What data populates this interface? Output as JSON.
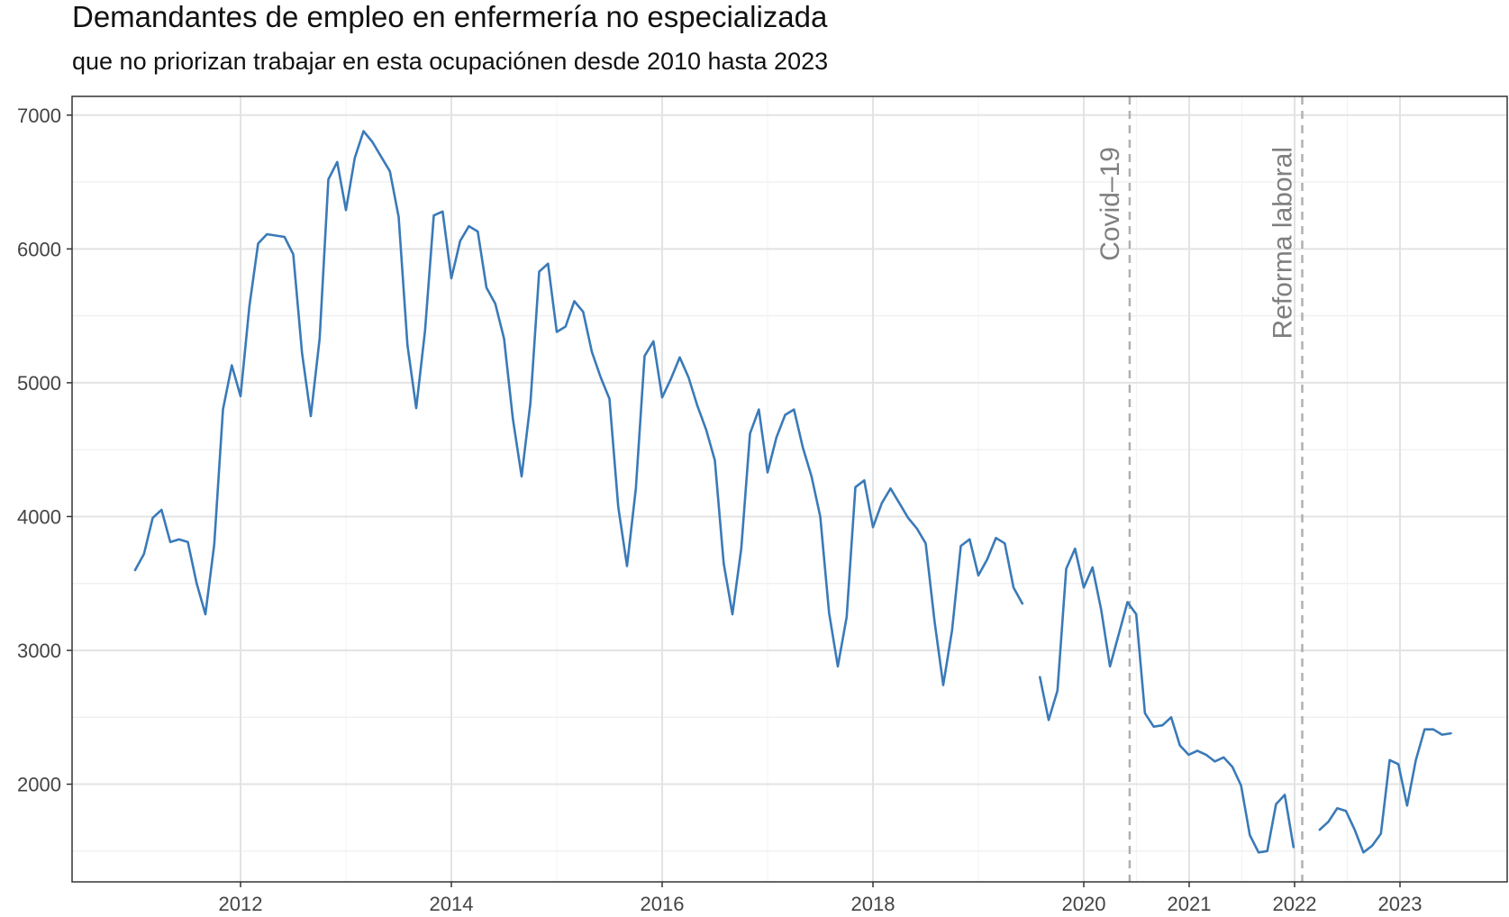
{
  "chart_data": {
    "type": "line",
    "title": "Demandantes de empleo en enfermería no especializada",
    "subtitle": "que no priorizan trabajar en esta ocupaciónen desde 2010 hasta 2023",
    "xlabel": "",
    "ylabel": "",
    "x_ticks": [
      "2012",
      "2014",
      "2016",
      "2018",
      "2020",
      "2021",
      "2022",
      "2023"
    ],
    "y_ticks": [
      2000,
      3000,
      4000,
      5000,
      6000,
      7000
    ],
    "ylim": [
      1270,
      7140
    ],
    "grid": true,
    "legend": "none",
    "line_color": "#3a7ab8",
    "annotations": [
      {
        "label": "Covid–19",
        "x_month": 113.25
      },
      {
        "label": "Reforma laboral",
        "x_month": 133
      }
    ],
    "series": [
      {
        "segments": [
          {
            "start_month": 0,
            "values": [
              3600,
              3720,
              3990,
              4050,
              3810,
              3830,
              3810,
              3500,
              3270,
              3790,
              4800,
              5130,
              4900,
              5570,
              6040,
              6110,
              6100,
              6090,
              5960,
              5220,
              4750,
              5330,
              6520,
              6650,
              6290,
              6680,
              6880,
              6800,
              6690,
              6580,
              6240,
              5280,
              4810,
              5390,
              6250,
              6280,
              5780,
              6060,
              6170,
              6130,
              5710,
              5590,
              5330,
              4730,
              4300,
              4850,
              5830,
              5890,
              5380,
              5420,
              5610,
              5530,
              5230,
              5040,
              4880,
              4070,
              3630,
              4210,
              5200,
              5310,
              4890,
              5030,
              5190,
              5040,
              4830,
              4650,
              4420,
              3650,
              3270,
              3760,
              4620,
              4800,
              4330,
              4590,
              4760,
              4800,
              4520,
              4300,
              4000,
              3280,
              2880,
              3250,
              4220,
              4270,
              3920,
              4100,
              4210,
              4100,
              3990,
              3910,
              3800,
              3220,
              2740,
              3150,
              3780,
              3830,
              3560,
              3680,
              3840,
              3800,
              3470,
              3350
            ]
          },
          {
            "start_month": 103,
            "values": [
              2800,
              2480,
              2700,
              3610,
              3760,
              3470,
              3620,
              3300,
              2880,
              3120,
              3360,
              3270,
              2530,
              2430,
              2440,
              2500,
              2290,
              2220,
              2250,
              2220,
              2170,
              2200,
              2130,
              1990,
              1620,
              1490,
              1500,
              1850,
              1920,
              1530
            ]
          },
          {
            "start_month": 135,
            "values": [
              1660,
              1720,
              1820,
              1800,
              1660,
              1490,
              1540,
              1630,
              2180,
              2150,
              1840,
              2180,
              2410,
              2410,
              2370,
              2380
            ]
          }
        ]
      }
    ]
  }
}
